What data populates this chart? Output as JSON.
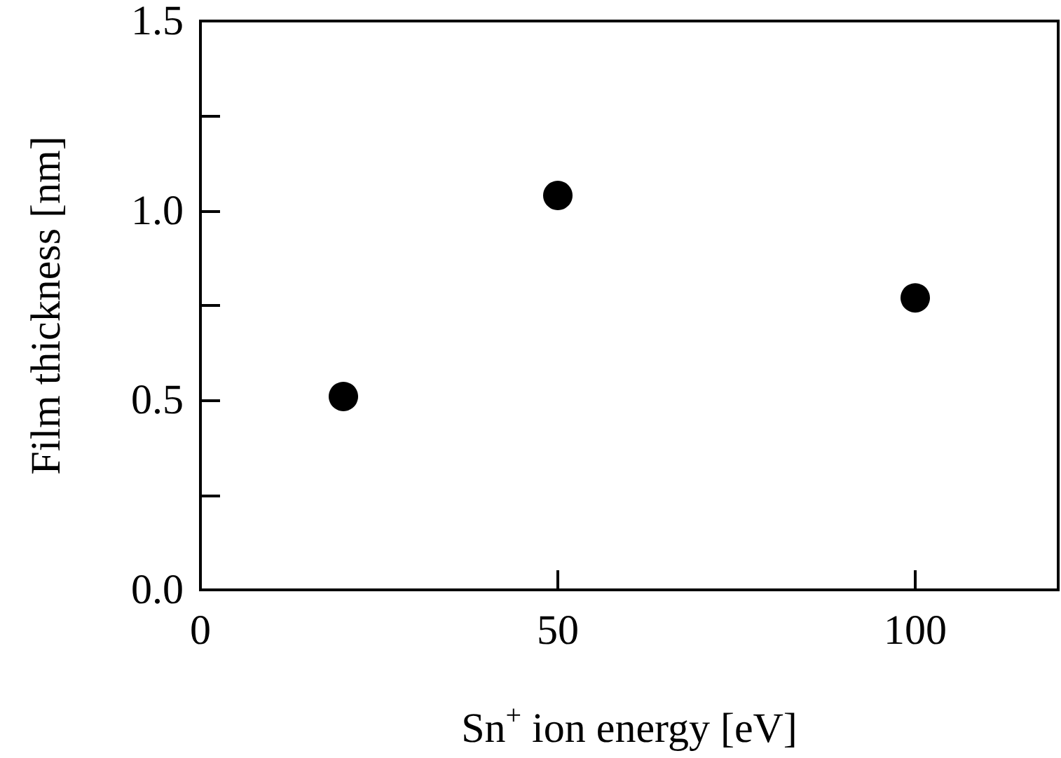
{
  "chart_data": {
    "type": "scatter",
    "xlabel": "Sn$^{+}$ ion energy [eV]",
    "ylabel": "Film thickness [nm]",
    "x": [
      20,
      50,
      100
    ],
    "series": [
      {
        "color": "#000000",
        "values": [
          0.51,
          1.04,
          0.77
        ]
      }
    ],
    "xlim": [
      0,
      120
    ],
    "xticks": [
      0,
      50,
      100
    ],
    "ylim": [
      0,
      1.5
    ],
    "yticks": [
      {
        "value": 0,
        "label": "0.0"
      },
      {
        "value": 0.25,
        "label": null
      },
      {
        "value": 0.5,
        "label": "0.5"
      },
      {
        "value": 0.75,
        "label": null
      },
      {
        "value": 1.0,
        "label": "1.0"
      },
      {
        "value": 1.25,
        "label": null
      },
      {
        "value": 1.5,
        "label": "1.5"
      }
    ],
    "marker": "circle",
    "grid": false
  }
}
